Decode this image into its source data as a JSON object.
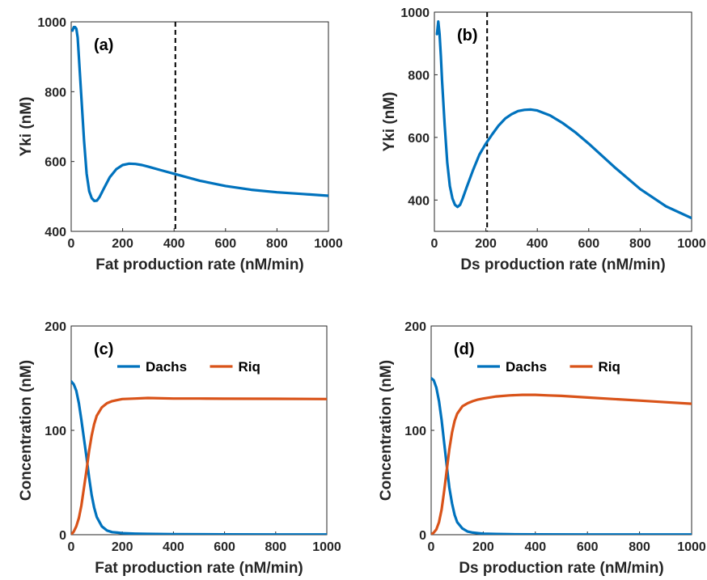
{
  "chart_data": [
    {
      "type": "line",
      "panel_label": "(a)",
      "xlabel": "Fat production rate (nM/min)",
      "ylabel": "Yki (nM)",
      "xlim": [
        0,
        1000
      ],
      "ylim": [
        400,
        1000
      ],
      "xticks": [
        0,
        200,
        400,
        600,
        800,
        1000
      ],
      "yticks": [
        400,
        600,
        800,
        1000
      ],
      "vline": 405,
      "legend": false,
      "grid": false,
      "series": [
        {
          "name": "",
          "color": "#0072BD",
          "x": [
            5,
            10,
            15,
            20,
            25,
            30,
            40,
            50,
            60,
            70,
            80,
            90,
            100,
            110,
            125,
            150,
            175,
            200,
            225,
            250,
            275,
            300,
            350,
            400,
            500,
            600,
            700,
            800,
            900,
            1000
          ],
          "y": [
            975,
            985,
            985,
            980,
            955,
            900,
            780,
            660,
            565,
            515,
            495,
            487,
            488,
            498,
            520,
            555,
            578,
            590,
            594,
            593,
            590,
            585,
            575,
            565,
            545,
            530,
            519,
            512,
            507,
            502
          ]
        }
      ]
    },
    {
      "type": "line",
      "panel_label": "(b)",
      "xlabel": "Ds production rate (nM/min)",
      "ylabel": "Yki (nM)",
      "xlim": [
        0,
        1000
      ],
      "ylim": [
        300,
        1000
      ],
      "xticks": [
        0,
        200,
        400,
        600,
        800,
        1000
      ],
      "yticks": [
        400,
        600,
        800,
        1000
      ],
      "vline": 205,
      "legend": false,
      "grid": false,
      "series": [
        {
          "name": "",
          "color": "#0072BD",
          "x": [
            10,
            15,
            20,
            25,
            30,
            40,
            50,
            60,
            70,
            80,
            90,
            100,
            110,
            125,
            150,
            175,
            200,
            225,
            250,
            275,
            300,
            325,
            350,
            375,
            400,
            450,
            500,
            550,
            600,
            700,
            800,
            900,
            1000
          ],
          "y": [
            930,
            970,
            930,
            860,
            780,
            640,
            520,
            445,
            405,
            385,
            378,
            385,
            405,
            440,
            495,
            545,
            580,
            610,
            638,
            660,
            674,
            684,
            688,
            689,
            686,
            670,
            645,
            615,
            580,
            505,
            435,
            380,
            342
          ]
        }
      ]
    },
    {
      "type": "line",
      "panel_label": "(c)",
      "xlabel": "Fat production rate (nM/min)",
      "ylabel": "Concentration (nM)",
      "xlim": [
        0,
        1000
      ],
      "ylim": [
        0,
        200
      ],
      "xticks": [
        0,
        200,
        400,
        600,
        800,
        1000
      ],
      "yticks": [
        0,
        100,
        200
      ],
      "legend": true,
      "legend_position": "top-right",
      "grid": false,
      "series": [
        {
          "name": "Dachs",
          "color": "#0072BD",
          "x": [
            0,
            10,
            20,
            30,
            40,
            50,
            60,
            70,
            80,
            90,
            100,
            120,
            140,
            160,
            180,
            200,
            250,
            300,
            400,
            600,
            800,
            1000
          ],
          "y": [
            147,
            144,
            138,
            126,
            110,
            92,
            74,
            55,
            38,
            26,
            17,
            8,
            4,
            2.5,
            2,
            1.5,
            1,
            0.8,
            0.5,
            0.3,
            0.2,
            0.2
          ]
        },
        {
          "name": "Riq",
          "color": "#D95319",
          "x": [
            0,
            10,
            20,
            30,
            40,
            50,
            60,
            70,
            80,
            90,
            100,
            120,
            140,
            160,
            180,
            200,
            250,
            300,
            400,
            500,
            600,
            800,
            1000
          ],
          "y": [
            0,
            3,
            8,
            16,
            28,
            45,
            62,
            80,
            95,
            106,
            114,
            122,
            126,
            128,
            129,
            130,
            130.5,
            131,
            130.5,
            130.5,
            130.3,
            130.2,
            130
          ]
        }
      ]
    },
    {
      "type": "line",
      "panel_label": "(d)",
      "xlabel": "Ds production rate (nM/min)",
      "ylabel": "Concentration (nM)",
      "xlim": [
        0,
        1000
      ],
      "ylim": [
        0,
        200
      ],
      "xticks": [
        0,
        200,
        400,
        600,
        800,
        1000
      ],
      "yticks": [
        0,
        100,
        200
      ],
      "legend": true,
      "legend_position": "top-right",
      "grid": false,
      "series": [
        {
          "name": "Dachs",
          "color": "#0072BD",
          "x": [
            0,
            10,
            20,
            30,
            40,
            50,
            60,
            70,
            80,
            90,
            100,
            120,
            140,
            160,
            180,
            200,
            250,
            300,
            400,
            600,
            800,
            1000
          ],
          "y": [
            150,
            148,
            141,
            128,
            110,
            88,
            66,
            45,
            30,
            19,
            12,
            6,
            3,
            2,
            1.5,
            1,
            0.7,
            0.5,
            0.3,
            0.2,
            0.2,
            0.2
          ]
        },
        {
          "name": "Riq",
          "color": "#D95319",
          "x": [
            0,
            10,
            20,
            30,
            40,
            50,
            60,
            70,
            80,
            90,
            100,
            120,
            140,
            160,
            180,
            200,
            250,
            300,
            350,
            400,
            450,
            500,
            600,
            700,
            800,
            900,
            1000
          ],
          "y": [
            0,
            2,
            5,
            12,
            24,
            42,
            62,
            82,
            98,
            109,
            116,
            123,
            126,
            128,
            129.5,
            130.5,
            132.5,
            133.5,
            134,
            134,
            133.5,
            133,
            131.5,
            130,
            128.5,
            127,
            125.5
          ]
        }
      ]
    }
  ]
}
